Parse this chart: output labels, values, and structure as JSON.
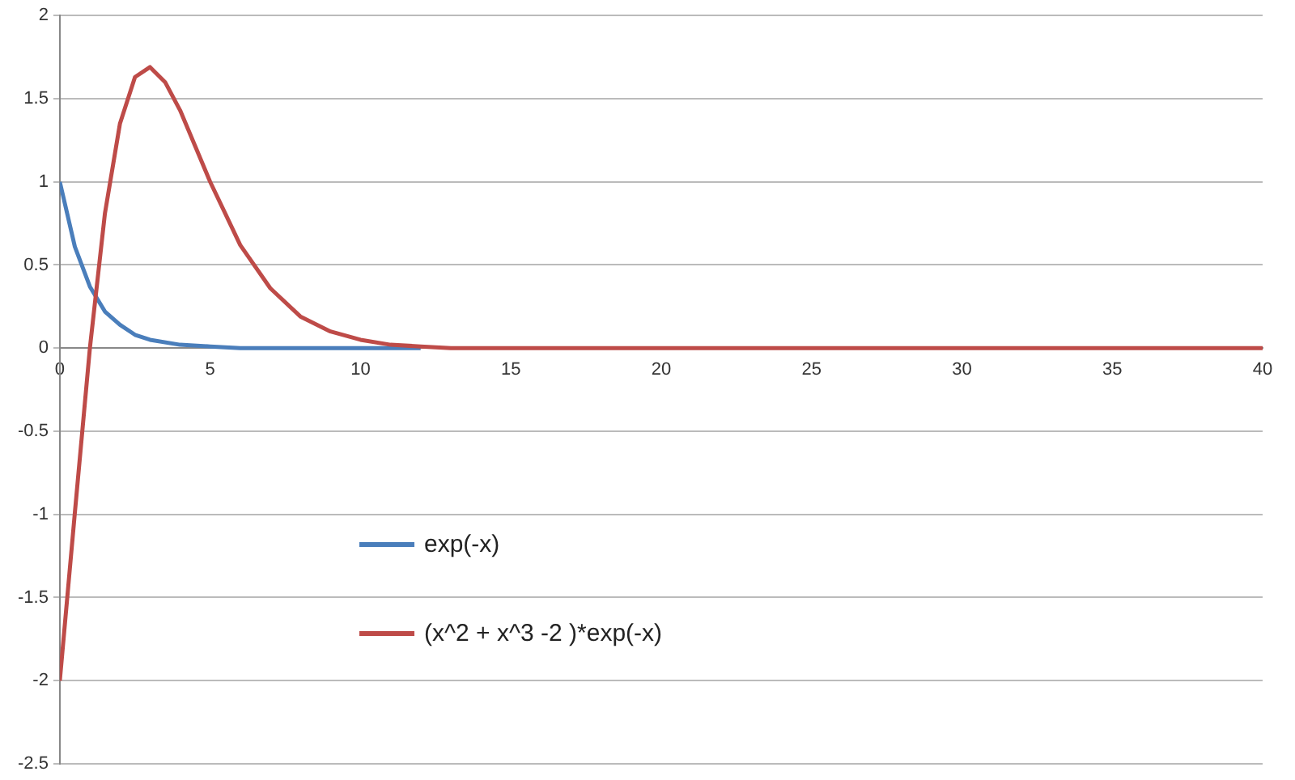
{
  "chart_data": {
    "type": "line",
    "xlim": [
      0,
      40
    ],
    "xticks": [
      0,
      5,
      10,
      15,
      20,
      25,
      30,
      35,
      40
    ],
    "ylim": [
      -2.5,
      2
    ],
    "yticks": [
      -2.5,
      -2,
      -1.5,
      -1,
      -0.5,
      0,
      0.5,
      1,
      1.5,
      2
    ],
    "grid": "y",
    "legend": "bottom left",
    "marker": "none",
    "line_style": "solid",
    "series": [
      {
        "name": "exp(-x)",
        "color": "#4a7ebb",
        "x": [
          0,
          0.5,
          1,
          1.5,
          2,
          2.5,
          3,
          4,
          5,
          6,
          8,
          10,
          12
        ],
        "values": [
          1,
          0.61,
          0.37,
          0.22,
          0.14,
          0.08,
          0.05,
          0.02,
          0.01,
          0,
          0,
          0,
          0
        ]
      },
      {
        "name": "(x^2 + x^3 -2 )*exp(-x)",
        "color": "#be4b48",
        "x": [
          0,
          0.5,
          1,
          1.5,
          2,
          2.5,
          3,
          3.5,
          4,
          5,
          6,
          7,
          8,
          9,
          10,
          11,
          12,
          13,
          15,
          20,
          30,
          40
        ],
        "values": [
          -2,
          -0.99,
          0,
          0.81,
          1.35,
          1.63,
          1.69,
          1.6,
          1.43,
          1,
          0.62,
          0.36,
          0.19,
          0.1,
          0.05,
          0.02,
          0.01,
          0,
          0,
          0,
          0,
          0
        ]
      }
    ]
  }
}
